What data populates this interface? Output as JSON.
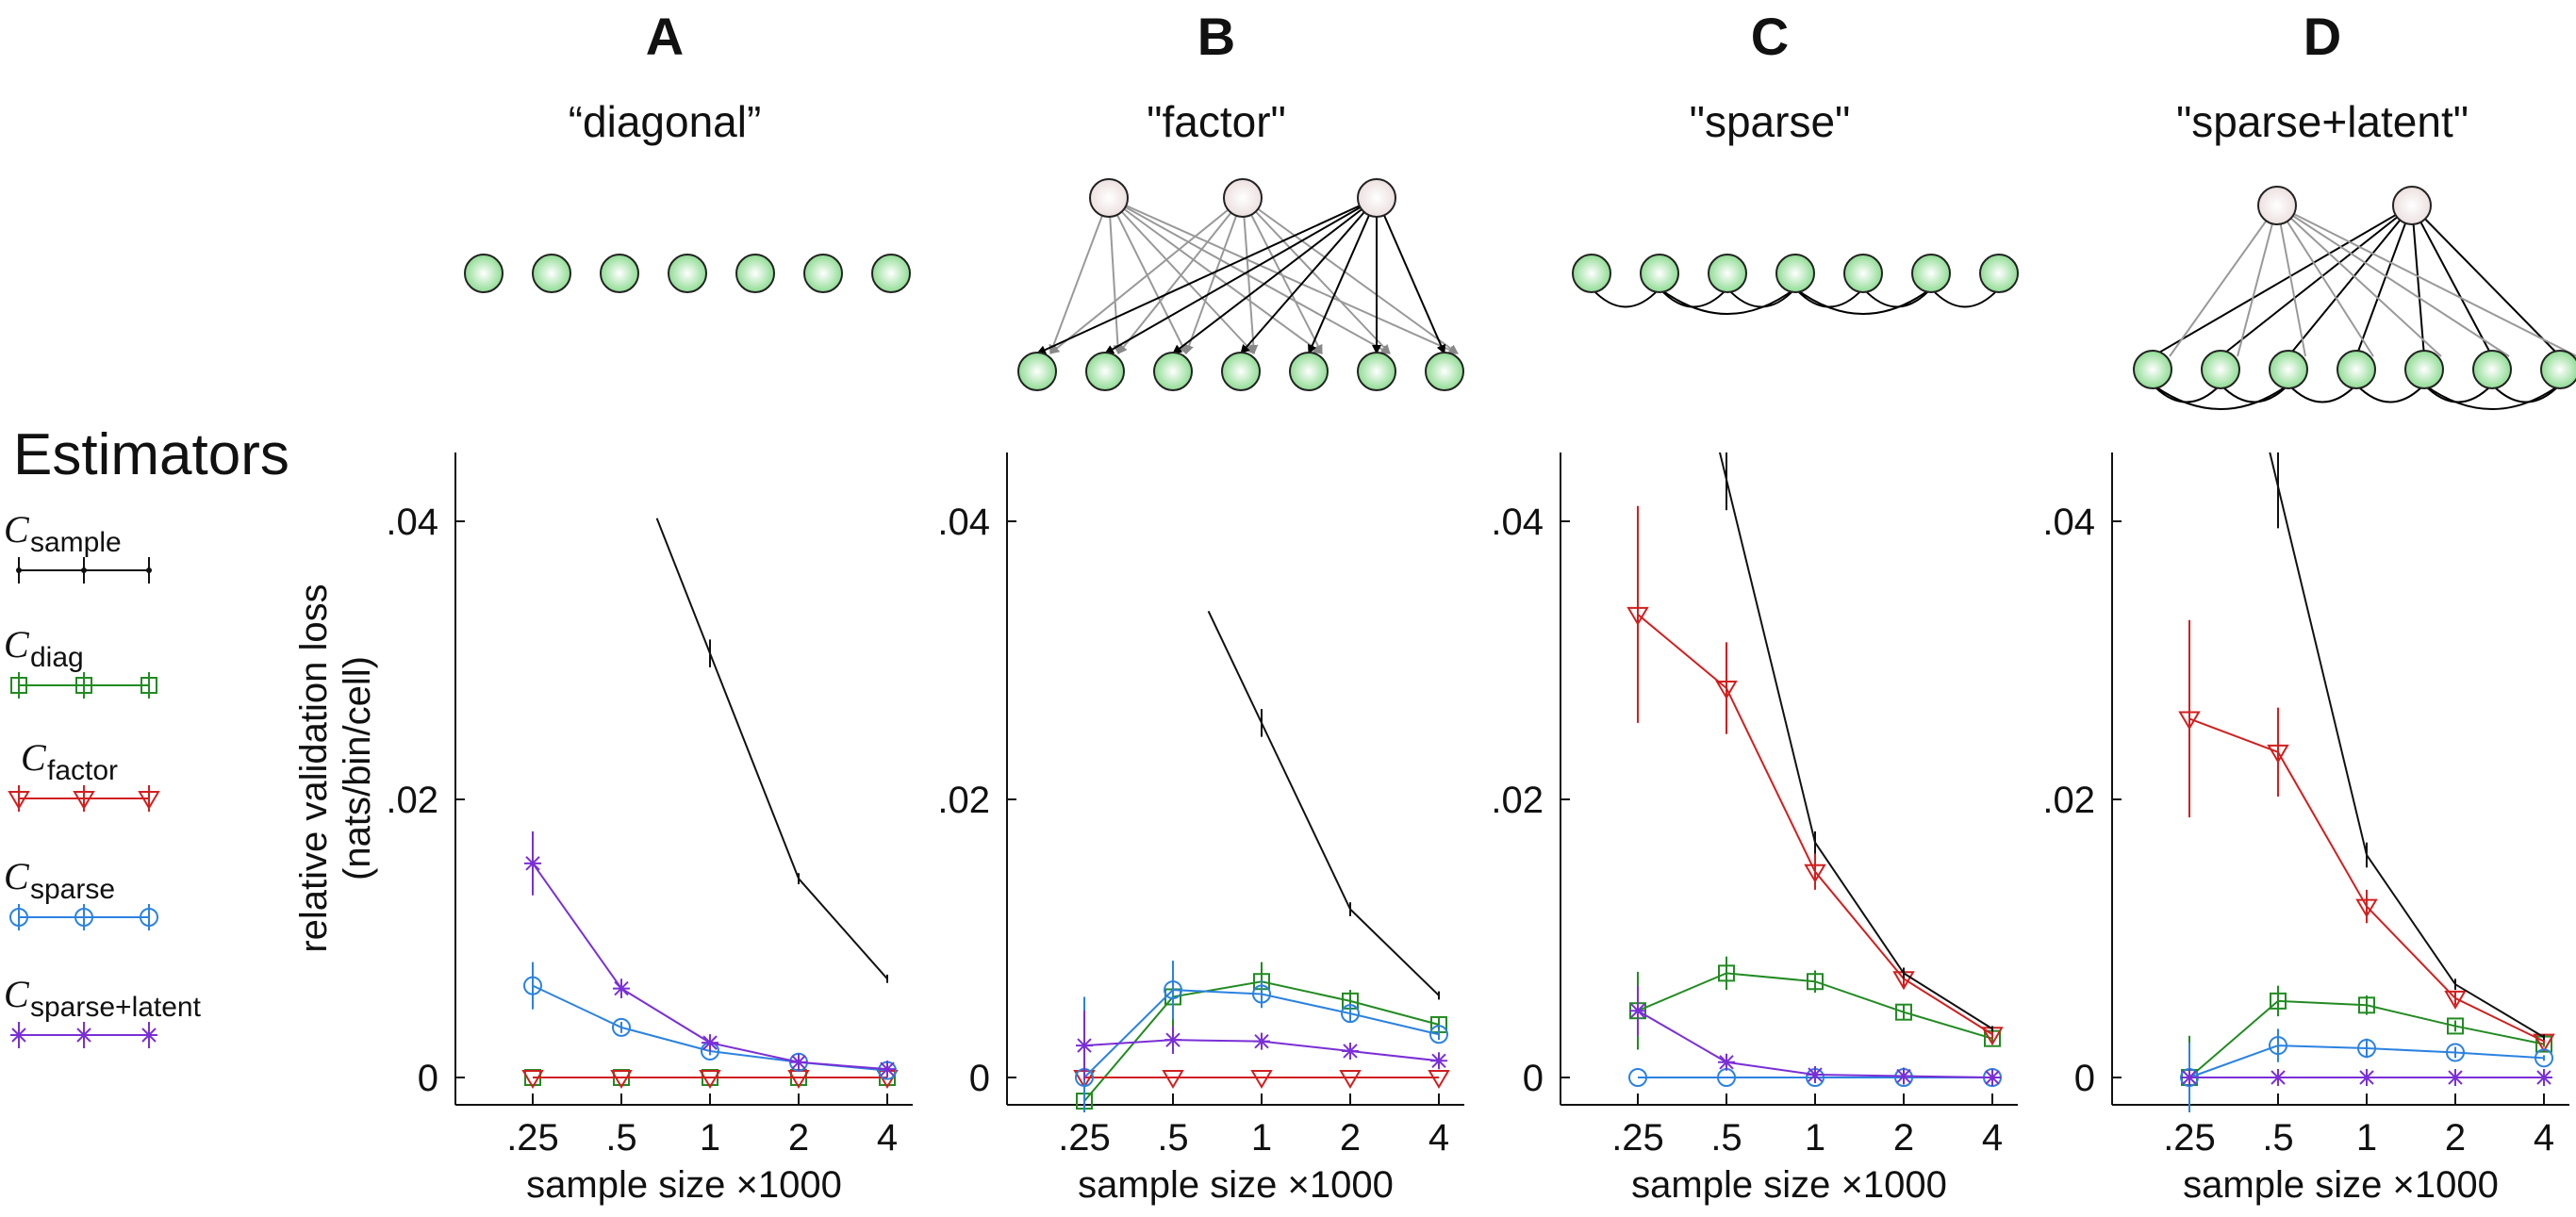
{
  "colors": {
    "sample": "#111111",
    "diag": "#228b22",
    "factor": "#d11f1f",
    "sparse": "#2b82e0",
    "latent": "#7a2fd6",
    "node_observed": "#8fdc93",
    "node_latent": "#ece0df"
  },
  "legend": {
    "title": "Estimators",
    "items": [
      {
        "key": "sample",
        "c": "C",
        "sub": "sample",
        "marker": "dot"
      },
      {
        "key": "diag",
        "c": "C",
        "sub": "diag",
        "marker": "square"
      },
      {
        "key": "factor",
        "c": "C",
        "sub": "factor",
        "marker": "triangle"
      },
      {
        "key": "sparse",
        "c": "C",
        "sub": "sparse",
        "marker": "circle"
      },
      {
        "key": "latent",
        "c": "C",
        "sub": "sparse+latent",
        "marker": "star"
      }
    ]
  },
  "axes": {
    "ylabel_line1": "relative validation loss",
    "ylabel_line2": "(nats/bin/cell)",
    "xlabel": "sample size ×1000",
    "ytick_labels": [
      "0",
      ".02",
      ".04"
    ],
    "xtick_labels": [
      ".25",
      ".5",
      "1",
      "2",
      "4"
    ]
  },
  "chart_data": [
    {
      "type": "line",
      "panel": "A",
      "title": "“diagonal”",
      "x": [
        0.25,
        0.5,
        1,
        2,
        4
      ],
      "xscale": "log",
      "ylim": [
        0,
        0.045
      ],
      "series": [
        {
          "key": "sample",
          "values": [
            null,
            null,
            0.0305,
            0.0143,
            0.0071
          ],
          "err": [
            0,
            0,
            0.001,
            0.0004,
            0.0003
          ]
        },
        {
          "key": "diag",
          "values": [
            0.0,
            0.0,
            0.0,
            0.0,
            0.0
          ],
          "err": [
            0,
            0,
            0,
            0,
            0
          ]
        },
        {
          "key": "factor",
          "values": [
            0.0,
            0.0,
            0.0,
            0.0,
            0.0
          ],
          "err": [
            0,
            0,
            0,
            0,
            0
          ]
        },
        {
          "key": "sparse",
          "values": [
            0.0066,
            0.0036,
            0.0019,
            0.0011,
            0.0005
          ],
          "err": [
            0.0017,
            0.0004,
            0.0003,
            0.0002,
            0.0001
          ]
        },
        {
          "key": "latent",
          "values": [
            0.0154,
            0.0064,
            0.0025,
            0.0011,
            0.0006
          ],
          "err": [
            0.0023,
            0.0007,
            0.0003,
            0.0002,
            0.0001
          ]
        }
      ]
    },
    {
      "type": "line",
      "panel": "B",
      "title": "\"factor\"",
      "x": [
        0.25,
        0.5,
        1,
        2,
        4
      ],
      "xscale": "log",
      "ylim": [
        0,
        0.045
      ],
      "series": [
        {
          "key": "sample",
          "values": [
            null,
            null,
            0.0255,
            0.0121,
            0.0059
          ],
          "err": [
            0,
            0,
            0.001,
            0.0005,
            0.0003
          ]
        },
        {
          "key": "diag",
          "values": [
            -0.0017,
            0.0058,
            0.0069,
            0.0055,
            0.0038
          ],
          "err": [
            0.004,
            0.0025,
            0.0014,
            0.0008,
            0.0005
          ]
        },
        {
          "key": "factor",
          "values": [
            0.0,
            0.0,
            0.0,
            0.0,
            0.0
          ],
          "err": [
            0,
            0,
            0,
            0,
            0
          ]
        },
        {
          "key": "sparse",
          "values": [
            0.0,
            0.0063,
            0.006,
            0.0046,
            0.0031
          ],
          "err": [
            0.0058,
            0.0021,
            0.001,
            0.0006,
            0.0004
          ]
        },
        {
          "key": "latent",
          "values": [
            0.0023,
            0.0027,
            0.0026,
            0.0019,
            0.0012
          ],
          "err": [
            0.0025,
            0.001,
            0.0006,
            0.0004,
            0.0002
          ]
        }
      ]
    },
    {
      "type": "line",
      "panel": "C",
      "title": "\"sparse\"",
      "x": [
        0.25,
        0.5,
        1,
        2,
        4
      ],
      "xscale": "log",
      "ylim": [
        0,
        0.045
      ],
      "series": [
        {
          "key": "sample",
          "values": [
            null,
            0.043,
            0.0169,
            0.0075,
            0.0035
          ],
          "err": [
            0,
            0.0022,
            0.0008,
            0.0004,
            0.0002
          ]
        },
        {
          "key": "diag",
          "values": [
            0.0048,
            0.0075,
            0.0069,
            0.0047,
            0.0028
          ],
          "err": [
            0.0028,
            0.0012,
            0.0008,
            0.0005,
            0.0003
          ]
        },
        {
          "key": "factor",
          "values": [
            0.0333,
            0.028,
            0.0148,
            0.0071,
            0.0031
          ],
          "err": [
            0.0078,
            0.0033,
            0.0013,
            0.0006,
            0.0003
          ]
        },
        {
          "key": "sparse",
          "values": [
            0.0,
            0.0,
            0.0,
            0.0,
            0.0
          ],
          "err": [
            0,
            0,
            0,
            0,
            0
          ]
        },
        {
          "key": "latent",
          "values": [
            0.0048,
            0.0011,
            0.0002,
            0.0001,
            0.0
          ],
          "err": [
            0.0018,
            0.0005,
            0.0002,
            0.0001,
            0.0
          ]
        }
      ]
    },
    {
      "type": "line",
      "panel": "D",
      "title": "\"sparse+latent\"",
      "x": [
        0.25,
        0.5,
        1,
        2,
        4
      ],
      "xscale": "log",
      "ylim": [
        0,
        0.045
      ],
      "series": [
        {
          "key": "sample",
          "values": [
            null,
            0.0425,
            0.016,
            0.0067,
            0.0029
          ],
          "err": [
            0,
            0.003,
            0.0009,
            0.0004,
            0.0002
          ]
        },
        {
          "key": "diag",
          "values": [
            0.0,
            0.0055,
            0.0052,
            0.0037,
            0.0024
          ],
          "err": [
            0.003,
            0.0011,
            0.0007,
            0.0004,
            0.0002
          ]
        },
        {
          "key": "factor",
          "values": [
            0.0258,
            0.0234,
            0.0123,
            0.0057,
            0.0026
          ],
          "err": [
            0.0071,
            0.0032,
            0.0012,
            0.0005,
            0.0002
          ]
        },
        {
          "key": "sparse",
          "values": [
            0.0,
            0.0023,
            0.0021,
            0.0018,
            0.0014
          ],
          "err": [
            0.0025,
            0.0012,
            0.0007,
            0.0004,
            0.0002
          ]
        },
        {
          "key": "latent",
          "values": [
            0.0,
            0.0,
            0.0,
            0.0,
            0.0
          ],
          "err": [
            0,
            0,
            0,
            0,
            0
          ]
        }
      ]
    }
  ]
}
